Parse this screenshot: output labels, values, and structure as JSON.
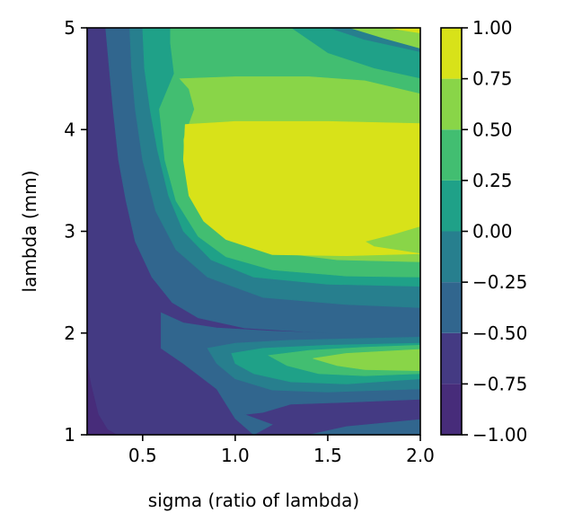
{
  "chart_data": {
    "type": "heatmap",
    "subtype": "filled-contour",
    "title": "",
    "xlabel": "sigma (ratio of lambda)",
    "ylabel": "lambda (mm)",
    "xlim": [
      0.2,
      2.0
    ],
    "ylim": [
      1,
      5
    ],
    "x_ticks": [
      "0.5",
      "1.0",
      "1.5",
      "2.0"
    ],
    "y_ticks": [
      "1",
      "2",
      "3",
      "4",
      "5"
    ],
    "colorbar": {
      "range": [
        -1.0,
        1.0
      ],
      "levels": [
        -1.0,
        -0.75,
        -0.5,
        -0.25,
        0.0,
        0.25,
        0.5,
        0.75,
        1.0
      ],
      "tick_labels": [
        "−1.00",
        "−0.75",
        "−0.50",
        "−0.25",
        "0.00",
        "0.25",
        "0.50",
        "0.75",
        "1.00"
      ],
      "colors": [
        "#472c7a",
        "#443a83",
        "#31668e",
        "#277f8e",
        "#1fa188",
        "#42be71",
        "#89d548",
        "#d8e219"
      ]
    },
    "grid": false,
    "regions": [
      {
        "level_band": [
          -0.75,
          -0.5
        ],
        "points": [
          [
            0.2,
            1
          ],
          [
            2.0,
            1
          ],
          [
            2.0,
            5
          ],
          [
            0.2,
            5
          ]
        ]
      },
      {
        "level_band": [
          -1.0,
          -0.75
        ],
        "points": [
          [
            0.2,
            1
          ],
          [
            0.36,
            1
          ],
          [
            0.31,
            1.05
          ],
          [
            0.26,
            1.2
          ],
          [
            0.22,
            1.5
          ],
          [
            0.2,
            1.7
          ]
        ]
      },
      {
        "level_band": [
          -0.5,
          -0.25
        ],
        "points": [
          [
            0.3,
            5
          ],
          [
            0.32,
            4.6
          ],
          [
            0.34,
            4.2
          ],
          [
            0.37,
            3.7
          ],
          [
            0.41,
            3.3
          ],
          [
            0.46,
            2.9
          ],
          [
            0.55,
            2.55
          ],
          [
            0.66,
            2.3
          ],
          [
            0.8,
            2.15
          ],
          [
            1.05,
            2.05
          ],
          [
            1.5,
            2.0
          ],
          [
            2.0,
            1.98
          ],
          [
            2.0,
            5
          ]
        ]
      },
      {
        "level_band": [
          -0.5,
          -0.25
        ],
        "points": [
          [
            0.6,
            2.2
          ],
          [
            0.72,
            2.1
          ],
          [
            0.9,
            2.05
          ],
          [
            1.2,
            2.02
          ],
          [
            1.5,
            2.0
          ],
          [
            2.0,
            2.0
          ],
          [
            2.0,
            1.35
          ],
          [
            1.6,
            1.32
          ],
          [
            1.3,
            1.3
          ],
          [
            1.15,
            1.22
          ],
          [
            1.05,
            1.2
          ],
          [
            1.2,
            1.1
          ],
          [
            1.1,
            1.0
          ],
          [
            1.4,
            1.0
          ],
          [
            1.6,
            1.08
          ],
          [
            2.0,
            1.15
          ],
          [
            2.0,
            1.0
          ],
          [
            1.1,
            1.0
          ],
          [
            1.0,
            1.16
          ],
          [
            0.9,
            1.45
          ],
          [
            0.72,
            1.7
          ],
          [
            0.6,
            1.85
          ]
        ]
      },
      {
        "level_band": [
          -0.25,
          0.0
        ],
        "points": [
          [
            0.43,
            5
          ],
          [
            0.44,
            4.6
          ],
          [
            0.46,
            4.2
          ],
          [
            0.5,
            3.7
          ],
          [
            0.57,
            3.2
          ],
          [
            0.68,
            2.82
          ],
          [
            0.85,
            2.55
          ],
          [
            1.15,
            2.35
          ],
          [
            1.6,
            2.28
          ],
          [
            2.0,
            2.25
          ],
          [
            2.0,
            5
          ]
        ]
      },
      {
        "level_band": [
          -0.25,
          0.0
        ],
        "points": [
          [
            0.85,
            1.85
          ],
          [
            1.0,
            1.9
          ],
          [
            1.3,
            1.93
          ],
          [
            2.0,
            1.96
          ],
          [
            2.0,
            1.45
          ],
          [
            1.5,
            1.42
          ],
          [
            1.2,
            1.44
          ],
          [
            1.0,
            1.55
          ],
          [
            0.9,
            1.7
          ]
        ]
      },
      {
        "level_band": [
          0.0,
          0.25
        ],
        "points": [
          [
            0.5,
            5
          ],
          [
            0.51,
            4.6
          ],
          [
            0.54,
            4.2
          ],
          [
            0.58,
            3.8
          ],
          [
            0.64,
            3.35
          ],
          [
            0.72,
            3.0
          ],
          [
            0.87,
            2.72
          ],
          [
            1.1,
            2.55
          ],
          [
            1.5,
            2.48
          ],
          [
            2.0,
            2.46
          ],
          [
            2.0,
            4.76
          ],
          [
            1.7,
            4.88
          ],
          [
            1.5,
            5
          ]
        ]
      },
      {
        "level_band": [
          0.0,
          0.25
        ],
        "points": [
          [
            0.98,
            1.8
          ],
          [
            1.15,
            1.85
          ],
          [
            1.5,
            1.88
          ],
          [
            2.0,
            1.9
          ],
          [
            2.0,
            1.55
          ],
          [
            1.6,
            1.5
          ],
          [
            1.3,
            1.52
          ],
          [
            1.1,
            1.6
          ],
          [
            1.0,
            1.7
          ]
        ]
      },
      {
        "level_band": [
          0.25,
          0.5
        ],
        "points": [
          [
            0.65,
            5
          ],
          [
            0.65,
            4.85
          ],
          [
            0.67,
            4.55
          ],
          [
            0.59,
            4.2
          ],
          [
            0.62,
            3.7
          ],
          [
            0.68,
            3.3
          ],
          [
            0.8,
            2.95
          ],
          [
            0.95,
            2.75
          ],
          [
            1.2,
            2.62
          ],
          [
            1.6,
            2.56
          ],
          [
            2.0,
            2.55
          ],
          [
            2.0,
            4.5
          ],
          [
            1.75,
            4.6
          ],
          [
            1.5,
            4.75
          ],
          [
            1.3,
            5
          ]
        ]
      },
      {
        "level_band": [
          0.25,
          0.5
        ],
        "points": [
          [
            1.18,
            1.78
          ],
          [
            1.4,
            1.83
          ],
          [
            1.7,
            1.86
          ],
          [
            2.0,
            1.88
          ],
          [
            2.0,
            1.6
          ],
          [
            1.7,
            1.58
          ],
          [
            1.45,
            1.6
          ],
          [
            1.28,
            1.68
          ]
        ]
      },
      {
        "level_band": [
          0.5,
          0.75
        ],
        "points": [
          [
            0.7,
            4.5
          ],
          [
            0.75,
            4.4
          ],
          [
            0.78,
            4.2
          ],
          [
            0.72,
            3.9
          ],
          [
            0.74,
            3.5
          ],
          [
            0.83,
            3.15
          ],
          [
            0.97,
            2.92
          ],
          [
            1.2,
            2.8
          ],
          [
            1.55,
            2.72
          ],
          [
            2.0,
            2.7
          ],
          [
            2.0,
            4.35
          ],
          [
            1.7,
            4.48
          ],
          [
            1.4,
            4.52
          ],
          [
            1.0,
            4.52
          ]
        ]
      },
      {
        "level_band": [
          0.5,
          0.75
        ],
        "points": [
          [
            1.62,
            5
          ],
          [
            1.8,
            4.9
          ],
          [
            2.0,
            4.8
          ],
          [
            2.0,
            5
          ]
        ]
      },
      {
        "level_band": [
          0.5,
          0.75
        ],
        "points": [
          [
            1.42,
            1.75
          ],
          [
            1.6,
            1.8
          ],
          [
            2.0,
            1.84
          ],
          [
            2.0,
            1.63
          ],
          [
            1.7,
            1.64
          ],
          [
            1.55,
            1.68
          ]
        ]
      },
      {
        "level_band": [
          0.75,
          1.0
        ],
        "points": [
          [
            0.73,
            4.05
          ],
          [
            1.0,
            4.08
          ],
          [
            1.5,
            4.08
          ],
          [
            2.0,
            4.06
          ],
          [
            2.0,
            3.05
          ],
          [
            1.85,
            2.97
          ],
          [
            1.7,
            2.9
          ],
          [
            1.75,
            2.85
          ],
          [
            2.0,
            2.78
          ],
          [
            1.6,
            2.76
          ],
          [
            1.2,
            2.77
          ],
          [
            0.95,
            2.92
          ],
          [
            0.83,
            3.1
          ],
          [
            0.75,
            3.35
          ],
          [
            0.72,
            3.7
          ]
        ]
      },
      {
        "level_band": [
          0.75,
          1.0
        ],
        "points": [
          [
            1.82,
            5
          ],
          [
            2.0,
            4.95
          ],
          [
            2.0,
            5
          ]
        ]
      }
    ]
  }
}
